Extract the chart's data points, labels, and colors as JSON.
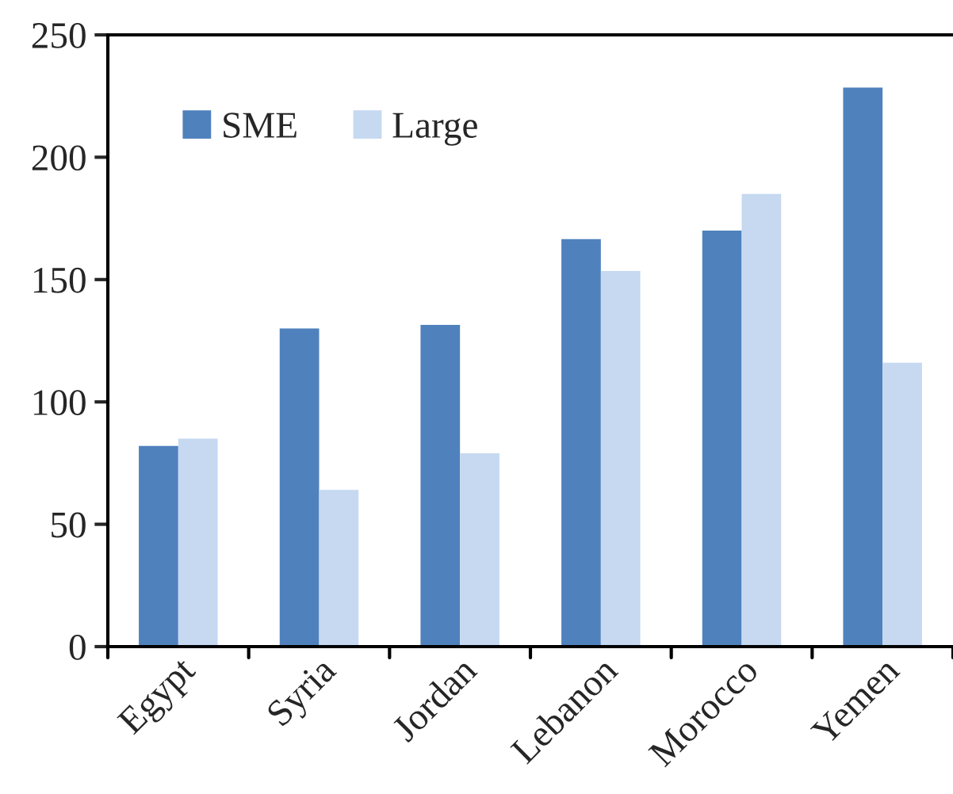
{
  "chart_data": {
    "type": "bar",
    "categories": [
      "Egypt",
      "Syria",
      "Jordan",
      "Lebanon",
      "Morocco",
      "Yemen"
    ],
    "series": [
      {
        "name": "SME",
        "color": "#4f81bd",
        "values": [
          82,
          130,
          131.5,
          166.5,
          170,
          228.5
        ]
      },
      {
        "name": "Large",
        "color": "#c6d9f1",
        "values": [
          85,
          64,
          79,
          153.5,
          185,
          116
        ]
      }
    ],
    "ylim": [
      0,
      250
    ],
    "yticks": [
      0,
      50,
      100,
      150,
      200,
      250
    ],
    "grid": false,
    "legend": "top left"
  }
}
